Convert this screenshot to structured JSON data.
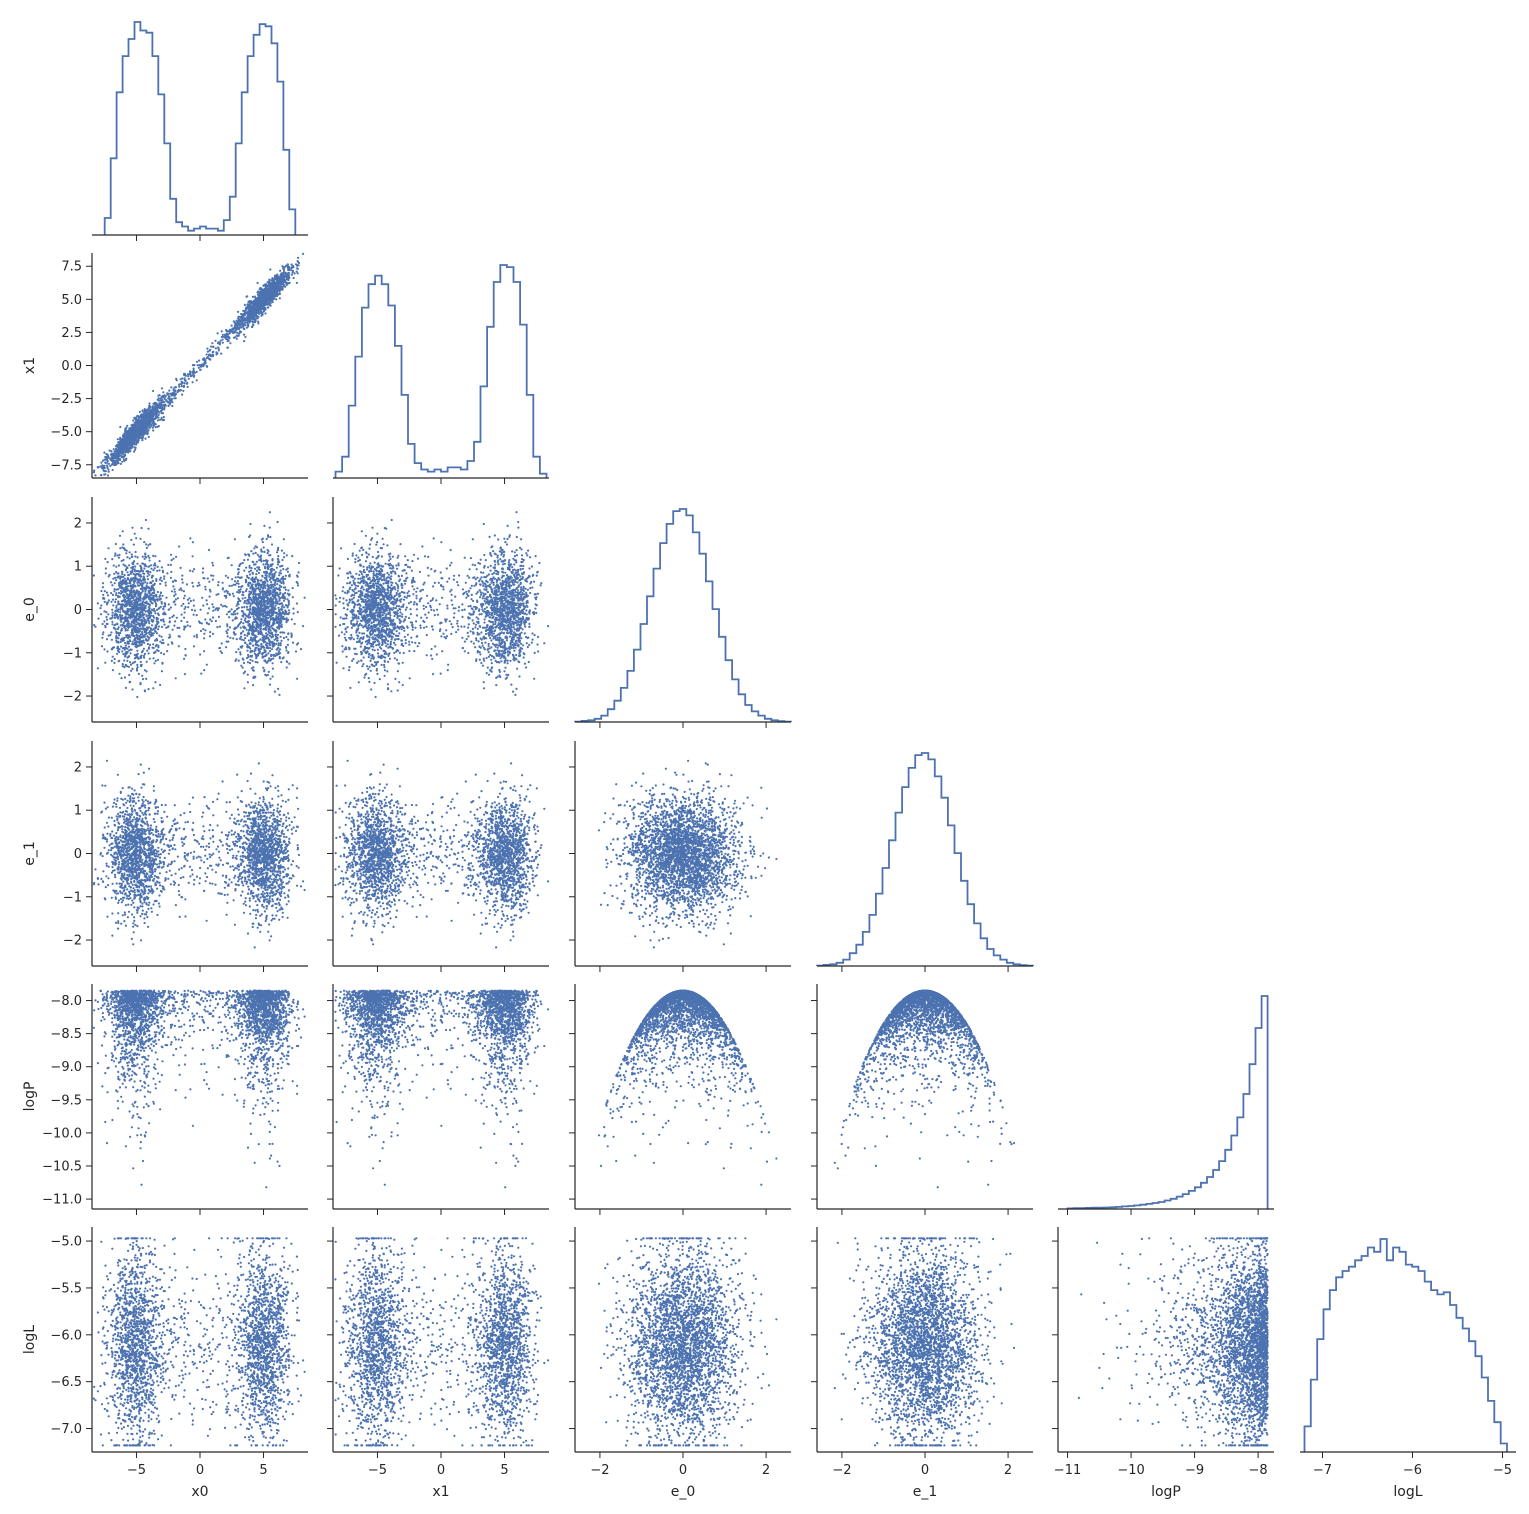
{
  "chart_data": {
    "type": "scatter",
    "layout": "corner pair plot",
    "variables": [
      "x0",
      "x1",
      "e_0",
      "e_1",
      "logP",
      "logL"
    ],
    "color": "#4c72b0",
    "axes": {
      "x0": {
        "label": "x0",
        "range": [
          -8.5,
          8.5
        ],
        "ticks": [
          -5,
          0,
          5
        ],
        "tick_labels": [
          "−5",
          "0",
          "5"
        ]
      },
      "x1": {
        "label": "x1",
        "range": [
          -8.5,
          8.5
        ],
        "ticks": [
          -7.5,
          -5.0,
          -2.5,
          0.0,
          2.5,
          5.0,
          7.5
        ],
        "tick_labels": [
          "−7.5",
          "−5.0",
          "−2.5",
          "0.0",
          "2.5",
          "5.0",
          "7.5"
        ],
        "x_ticks": [
          -5,
          0,
          5
        ],
        "x_tick_labels": [
          "−5",
          "0",
          "5"
        ]
      },
      "e_0": {
        "label": "e_0",
        "range": [
          -2.6,
          2.6
        ],
        "ticks": [
          -2,
          -1,
          0,
          1,
          2
        ],
        "tick_labels": [
          "−2",
          "−1",
          "0",
          "1",
          "2"
        ],
        "x_ticks": [
          -2,
          0,
          2
        ],
        "x_tick_labels": [
          "−2",
          "0",
          "2"
        ]
      },
      "e_1": {
        "label": "e_1",
        "range": [
          -2.6,
          2.6
        ],
        "ticks": [
          -2,
          -1,
          0,
          1,
          2
        ],
        "tick_labels": [
          "−2",
          "−1",
          "0",
          "1",
          "2"
        ],
        "x_ticks": [
          -2,
          0,
          2
        ],
        "x_tick_labels": [
          "−2",
          "0",
          "2"
        ]
      },
      "logP": {
        "label": "logP",
        "range": [
          -11.15,
          -7.75
        ],
        "ticks": [
          -11.0,
          -10.5,
          -10.0,
          -9.5,
          -9.0,
          -8.5,
          -8.0
        ],
        "tick_labels": [
          "−11.0",
          "−10.5",
          "−10.0",
          "−9.5",
          "−9.0",
          "−8.5",
          "−8.0"
        ],
        "x_ticks": [
          -11,
          -10,
          -9,
          -8
        ],
        "x_tick_labels": [
          "−11",
          "−10",
          "−9",
          "−8"
        ]
      },
      "logL": {
        "label": "logL",
        "range": [
          -7.25,
          -4.85
        ],
        "ticks": [
          -7.0,
          -6.5,
          -6.0,
          -5.5,
          -5.0
        ],
        "tick_labels": [
          "−7.0",
          "−6.5",
          "−6.0",
          "−5.5",
          "−5.0"
        ],
        "x_ticks": [
          -7,
          -6,
          -5
        ],
        "x_tick_labels": [
          "−7",
          "−6",
          "−5"
        ]
      }
    },
    "histograms": {
      "x0": {
        "range": [
          -7.5,
          7.5
        ],
        "counts": [
          8,
          36,
          67,
          84,
          92,
          100,
          96,
          95,
          84,
          66,
          43,
          17,
          6,
          4,
          2,
          3,
          4,
          3,
          3,
          2,
          7,
          18,
          43,
          67,
          84,
          94,
          99,
          98,
          90,
          72,
          40,
          12
        ]
      },
      "x1": {
        "range": [
          -8.3,
          8.3
        ],
        "counts": [
          3,
          10,
          34,
          57,
          80,
          91,
          95,
          91,
          81,
          62,
          39,
          16,
          7,
          4,
          3,
          4,
          3,
          5,
          5,
          4,
          8,
          17,
          43,
          71,
          92,
          100,
          99,
          92,
          72,
          39,
          10,
          2
        ]
      },
      "e_0": {
        "range": [
          -2.6,
          2.6
        ],
        "counts": [
          0.2,
          0.5,
          0.8,
          1.5,
          3,
          6,
          10,
          16,
          24,
          34,
          46,
          59,
          72,
          84,
          93,
          99,
          100,
          97,
          89,
          79,
          66,
          53,
          40,
          29,
          20,
          13,
          8,
          5,
          3,
          1.5,
          0.8,
          0.4,
          0.2
        ]
      },
      "e_1": {
        "range": [
          -2.6,
          2.6
        ],
        "counts": [
          0.2,
          0.5,
          0.8,
          1.5,
          3,
          6,
          10,
          16,
          24,
          34,
          46,
          59,
          72,
          84,
          93,
          99,
          100,
          97,
          89,
          79,
          66,
          53,
          40,
          29,
          20,
          13,
          8,
          5,
          3,
          1.5,
          0.8,
          0.4,
          0.2
        ]
      },
      "logP": {
        "range": [
          -11.0,
          -7.85
        ],
        "counts": [
          0.3,
          0.4,
          0.4,
          0.5,
          0.6,
          0.6,
          0.7,
          0.8,
          1,
          1.2,
          1.4,
          1.7,
          2,
          2.4,
          2.8,
          3.3,
          4,
          4.8,
          5.8,
          7,
          8.5,
          10.2,
          12.3,
          15,
          18.3,
          22.5,
          27.8,
          34.5,
          43,
          54,
          68,
          85,
          100
        ]
      },
      "logL": {
        "range": [
          -7.2,
          -4.95
        ],
        "counts": [
          12,
          34,
          53,
          67,
          76,
          82,
          85,
          87,
          90,
          92,
          96,
          94,
          100,
          90,
          96,
          94,
          88,
          87,
          85,
          80,
          76,
          74,
          75,
          69,
          63,
          58,
          52,
          45,
          35,
          24,
          14,
          4
        ]
      }
    }
  }
}
